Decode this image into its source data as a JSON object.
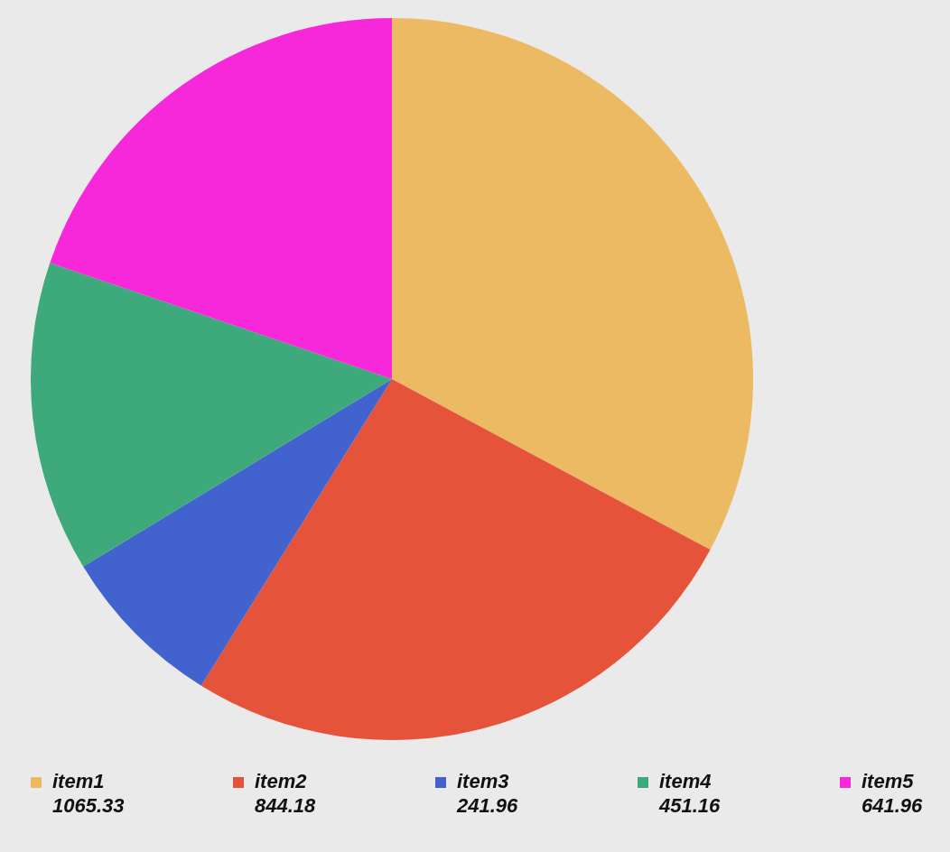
{
  "chart_data": {
    "type": "pie",
    "categories": [
      "item1",
      "item2",
      "item3",
      "item4",
      "item5"
    ],
    "values": [
      1065.33,
      844.18,
      241.96,
      451.16,
      641.96
    ],
    "colors": [
      "#edba64",
      "#e5533b",
      "#4263cd",
      "#3ea97a",
      "#f728d9"
    ],
    "legend": "bottom",
    "data_labels": true
  }
}
